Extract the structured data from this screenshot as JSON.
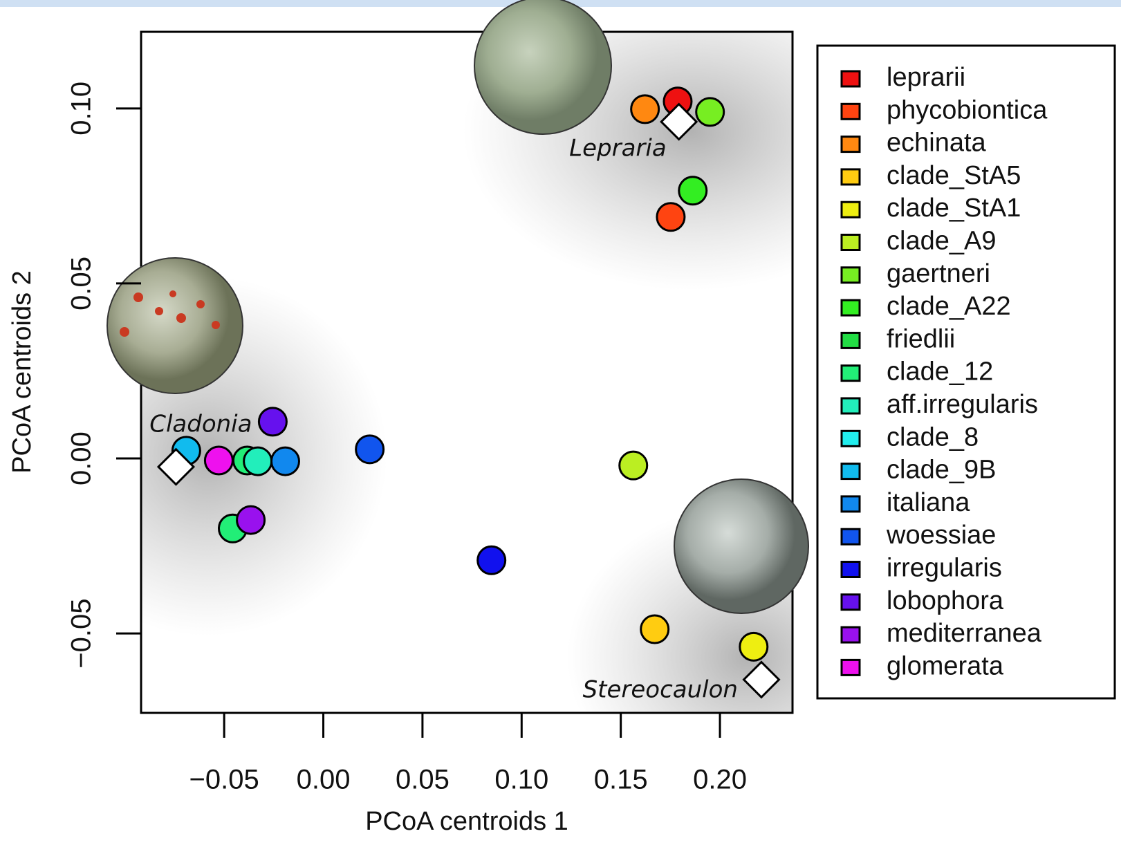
{
  "chart_data": {
    "type": "scatter",
    "xlabel": "PCoA centroids 1",
    "ylabel": "PCoA centroids 2",
    "xlim": [
      -0.0919,
      0.2366
    ],
    "ylim": [
      -0.0727,
      0.1219
    ],
    "xticks": [
      {
        "value": -0.05,
        "label": "−0.05"
      },
      {
        "value": 0,
        "label": "0.00"
      },
      0.05,
      {
        "value": 0.1,
        "label": "0.10"
      },
      0.15,
      {
        "value": 0.2,
        "label": "0.20"
      }
    ],
    "yticks": [
      {
        "value": -0.05,
        "label": "−0.05"
      },
      {
        "value": 0,
        "label": "0.00"
      },
      0.05,
      {
        "value": 0.1,
        "label": "0.10"
      }
    ],
    "legend": "outside-right",
    "series": [
      {
        "name": "leprarii",
        "color": "#ee1111",
        "x": [
          0.1787
        ],
        "y": [
          0.102
        ]
      },
      {
        "name": "phycobiontica",
        "color": "#ff4411",
        "x": [
          0.1752
        ],
        "y": [
          0.069
        ]
      },
      {
        "name": "echinata",
        "color": "#ff8811",
        "x": [
          0.1622
        ],
        "y": [
          0.0998
        ]
      },
      {
        "name": "clade_StA5",
        "color": "#ffcc11",
        "x": [
          0.1671
        ],
        "y": [
          -0.0488
        ]
      },
      {
        "name": "clade_StA1",
        "color": "#eeee11",
        "x": [
          0.217
        ],
        "y": [
          -0.0538
        ]
      },
      {
        "name": "clade_A9",
        "color": "#bbee22",
        "x": [
          0.1563
        ],
        "y": [
          -0.002
        ]
      },
      {
        "name": "gaertneri",
        "color": "#77ee22",
        "x": [
          0.195
        ],
        "y": [
          0.099
        ]
      },
      {
        "name": "clade_A22",
        "color": "#33ee22",
        "x": [
          0.1863
        ],
        "y": [
          0.0765
        ]
      },
      {
        "name": "friedlii",
        "color": "#22dd44",
        "x": [],
        "y": []
      },
      {
        "name": "clade_12",
        "color": "#22ee77",
        "x": [
          -0.0457,
          -0.0384
        ],
        "y": [
          -0.02,
          -0.0006
        ]
      },
      {
        "name": "aff.irregularis",
        "color": "#22eebb",
        "x": [
          -0.0331
        ],
        "y": [
          -0.0008
        ]
      },
      {
        "name": "clade_8",
        "color": "#22eeee",
        "x": [],
        "y": []
      },
      {
        "name": "clade_9B",
        "color": "#11bbee",
        "x": [
          -0.0691
        ],
        "y": [
          0.0022
        ]
      },
      {
        "name": "italiana",
        "color": "#1188ee",
        "x": [
          -0.0192
        ],
        "y": [
          -0.0008
        ]
      },
      {
        "name": "woessiae",
        "color": "#1155ee",
        "x": [
          0.0234
        ],
        "y": [
          0.0026
        ]
      },
      {
        "name": "irregularis",
        "color": "#1111ee",
        "x": [
          0.0848
        ],
        "y": [
          -0.0291
        ]
      },
      {
        "name": "lobophora",
        "color": "#6611ee",
        "x": [
          -0.0255
        ],
        "y": [
          0.0105
        ]
      },
      {
        "name": "mediterranea",
        "color": "#9911ee",
        "x": [
          -0.0366
        ],
        "y": [
          -0.0176
        ]
      },
      {
        "name": "glomerata",
        "color": "#ee11ee",
        "x": [
          -0.0527
        ],
        "y": [
          -0.0006
        ]
      }
    ],
    "group_markers": {
      "labels": [
        "Lepraria",
        "Cladonia",
        "Stereocaulon"
      ],
      "x": [
        0.1793,
        -0.0743,
        0.2209
      ],
      "y": [
        0.0962,
        -0.0024,
        -0.0632
      ]
    }
  }
}
